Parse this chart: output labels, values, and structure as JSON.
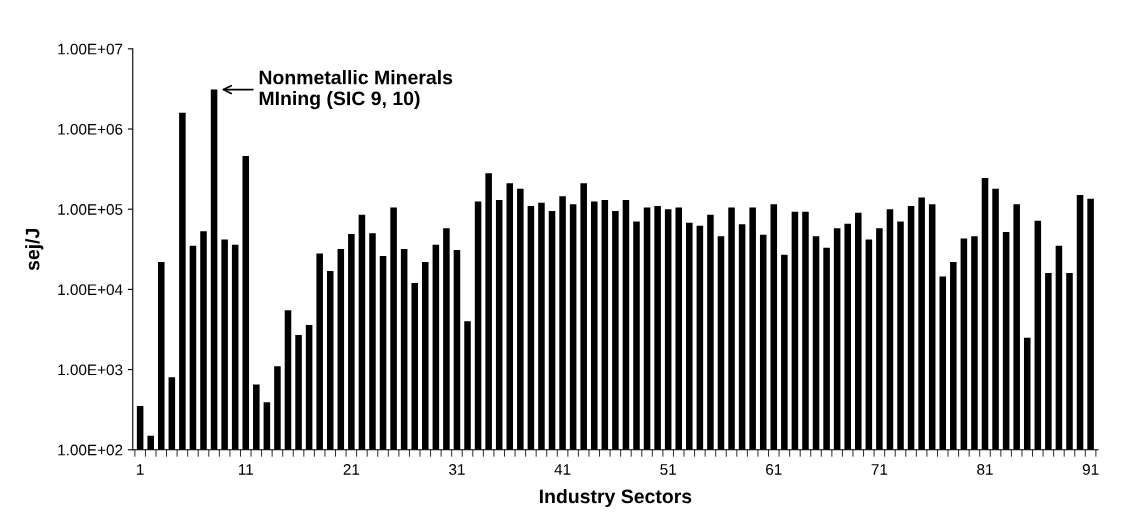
{
  "chart_data": {
    "type": "bar",
    "xlabel": "Industry Sectors",
    "ylabel": "sej/J",
    "categories": [
      "1",
      null,
      null,
      null,
      null,
      null,
      null,
      null,
      null,
      null,
      "11",
      null,
      null,
      null,
      null,
      null,
      null,
      null,
      null,
      null,
      "21",
      null,
      null,
      null,
      null,
      null,
      null,
      null,
      null,
      null,
      "31",
      null,
      null,
      null,
      null,
      null,
      null,
      null,
      null,
      null,
      "41",
      null,
      null,
      null,
      null,
      null,
      null,
      null,
      null,
      null,
      "51",
      null,
      null,
      null,
      null,
      null,
      null,
      null,
      null,
      null,
      "61",
      null,
      null,
      null,
      null,
      null,
      null,
      null,
      null,
      null,
      "71",
      null,
      null,
      null,
      null,
      null,
      null,
      null,
      null,
      null,
      "81",
      null,
      null,
      null,
      null,
      null,
      null,
      null,
      null,
      null,
      "91"
    ],
    "values": [
      350,
      150,
      22000,
      800,
      1600000,
      35000,
      53000,
      3100000,
      42000,
      36000,
      460000,
      650,
      390,
      1100,
      5500,
      2700,
      3600,
      28000,
      17000,
      32000,
      49000,
      85000,
      50000,
      26000,
      105000,
      32000,
      12000,
      22000,
      36000,
      58000,
      31000,
      4000,
      125000,
      280000,
      130000,
      210000,
      180000,
      110000,
      120000,
      95000,
      145000,
      115000,
      210000,
      125000,
      130000,
      95000,
      130000,
      70000,
      105000,
      110000,
      100000,
      105000,
      68000,
      62000,
      85000,
      46000,
      105000,
      65000,
      105000,
      48000,
      115000,
      27000,
      93000,
      93000,
      46000,
      33000,
      58000,
      66000,
      90000,
      42000,
      58000,
      100000,
      70000,
      110000,
      140000,
      115000,
      14500,
      22000,
      43000,
      46000,
      245000,
      180000,
      52000,
      115000,
      2500,
      72000,
      16000,
      35000,
      16000,
      150000,
      135000
    ],
    "color": "#000000",
    "log": "y",
    "ylim": [
      100,
      10000000
    ],
    "yticks": [
      {
        "value": 100,
        "label": "1.00E+02"
      },
      {
        "value": 1000,
        "label": "1.00E+03"
      },
      {
        "value": 10000,
        "label": "1.00E+04"
      },
      {
        "value": 100000,
        "label": "1.00E+05"
      },
      {
        "value": 1000000,
        "label": "1.00E+06"
      },
      {
        "value": 10000000,
        "label": "1.00E+07"
      }
    ],
    "grid": false,
    "annotations": [
      "Nonmetallic Minerals\nMIning (SIC 9, 10)"
    ]
  }
}
